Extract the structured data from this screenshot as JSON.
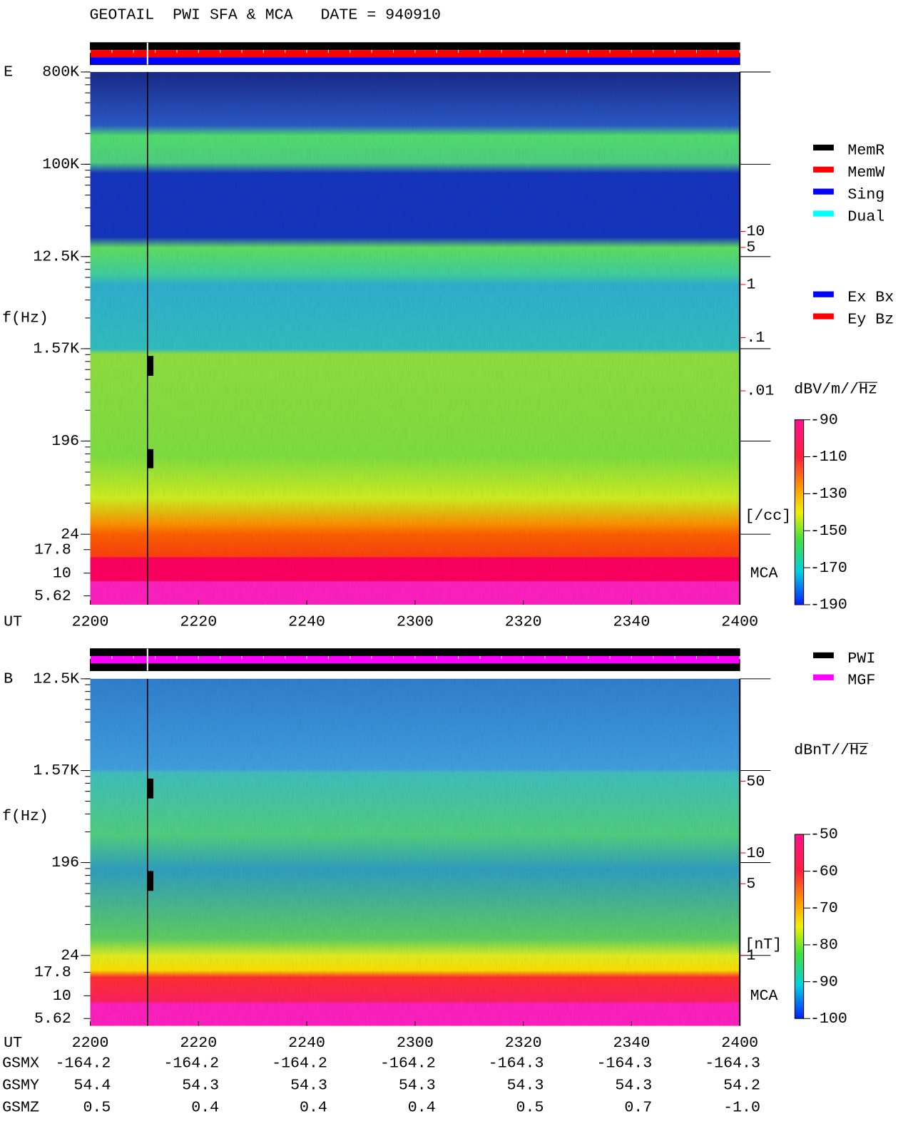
{
  "chart_data": [
    {
      "type": "spectrogram",
      "title": "GEOTAIL  PWI SFA & MCA   DATE = 940910",
      "panel_label": "E",
      "ylabel": "f(Hz)",
      "xlabel": "UT",
      "x": [
        "2200",
        "2220",
        "2240",
        "2300",
        "2320",
        "2340",
        "2400"
      ],
      "log_y": true,
      "ylim": [
        24,
        800000
      ],
      "yticks": [
        {
          "value": 800000,
          "label": "800K"
        },
        {
          "value": 100000,
          "label": "100K"
        },
        {
          "value": 12500,
          "label": "12.5K"
        },
        {
          "value": 1570,
          "label": "1.57K"
        },
        196,
        24
      ],
      "mca_label": "MCA",
      "mca_channels": [
        "17.8",
        "10",
        "5.62"
      ],
      "y2lim": [
        2e-05,
        10000
      ],
      "y2ticks": [
        10,
        5,
        1,
        {
          "value": 0.1,
          "label": ".1"
        },
        {
          "value": 0.01,
          "label": ".01"
        }
      ],
      "y2label": "[/cc]",
      "y2color": "#ff0000",
      "colorbar": {
        "label": "dBV/m//",
        "label_unit": "Hz",
        "lim": [
          -190,
          -90
        ],
        "ticks": [
          -90,
          -110,
          -130,
          -150,
          -170,
          -190
        ]
      },
      "legend": [
        {
          "name": "MemR",
          "color": "#000000"
        },
        {
          "name": "MemW",
          "color": "#ff0000"
        },
        {
          "name": "Sing",
          "color": "#0000ff"
        },
        {
          "name": "Dual",
          "color": "#00ffff"
        }
      ],
      "component_legend": [
        {
          "name": "Ex Bx",
          "color": "#0000ff"
        },
        {
          "name": "Ey Bz",
          "color": "#ff0000"
        }
      ]
    },
    {
      "type": "spectrogram",
      "panel_label": "B",
      "ylabel": "f(Hz)",
      "xlabel": "UT",
      "x": [
        "2200",
        "2220",
        "2240",
        "2300",
        "2320",
        "2340",
        "2400"
      ],
      "log_y": true,
      "ylim": [
        24,
        12500
      ],
      "yticks": [
        {
          "value": 12500,
          "label": "12.5K"
        },
        {
          "value": 1570,
          "label": "1.57K"
        },
        196,
        24
      ],
      "mca_label": "MCA",
      "mca_channels": [
        "17.8",
        "10",
        "5.62"
      ],
      "y2lim": [
        1,
        500
      ],
      "y2ticks": [
        50,
        10,
        5,
        1
      ],
      "y2label": "[nT]",
      "y2color": "#ff0000",
      "colorbar": {
        "label": "dBnT//",
        "label_unit": "Hz",
        "lim": [
          -100,
          -50
        ],
        "ticks": [
          -50,
          -60,
          -70,
          -80,
          -90,
          -100
        ]
      },
      "legend": [
        {
          "name": "PWI",
          "color": "#000000"
        },
        {
          "name": "MGF",
          "color": "#ff00ff"
        }
      ],
      "orbit": {
        "labels": [
          "GSMX",
          "GSMY",
          "GSMZ"
        ],
        "rows": [
          [
            "-164.2",
            "-164.2",
            "-164.2",
            "-164.2",
            "-164.3",
            "-164.3",
            "-164.3"
          ],
          [
            "54.4",
            "54.3",
            "54.3",
            "54.3",
            "54.3",
            "54.3",
            "54.2"
          ],
          [
            "0.5",
            "0.4",
            "0.4",
            "0.4",
            "0.5",
            "0.7",
            "-1.0"
          ]
        ]
      }
    }
  ]
}
